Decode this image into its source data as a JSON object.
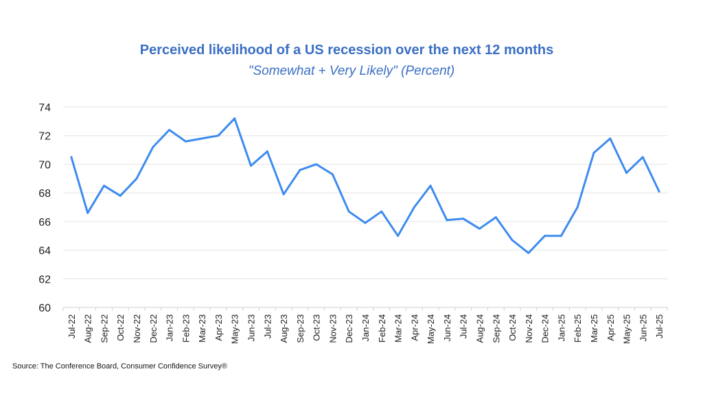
{
  "chart_data": {
    "type": "line",
    "title": "Perceived likelihood of a US recession over the next 12 months",
    "subtitle": "\"Somewhat + Very Likely\" (Percent)",
    "xlabel": "",
    "ylabel": "",
    "ylim": [
      60,
      74
    ],
    "yticks": [
      "60",
      "62",
      "64",
      "66",
      "68",
      "70",
      "72",
      "74"
    ],
    "grid": true,
    "categories": [
      "Jul-22",
      "Aug-22",
      "Sep-22",
      "Oct-22",
      "Nov-22",
      "Dec-22",
      "Jan-23",
      "Feb-23",
      "Mar-23",
      "Apr-23",
      "May-23",
      "Jun-23",
      "Jul-23",
      "Aug-23",
      "Sep-23",
      "Oct-23",
      "Nov-23",
      "Dec-23",
      "Jan-24",
      "Feb-24",
      "Mar-24",
      "Apr-24",
      "May-24",
      "Jun-24",
      "Jul-24",
      "Aug-24",
      "Sep-24",
      "Oct-24",
      "Nov-24",
      "Dec-24",
      "Jan-25",
      "Feb-25",
      "Mar-25",
      "Apr-25",
      "May-25",
      "Jun-25",
      "Jul-25"
    ],
    "series": [
      {
        "values": [
          70.5,
          66.6,
          68.5,
          67.8,
          69.0,
          71.2,
          72.4,
          71.6,
          71.8,
          72.0,
          73.2,
          69.9,
          70.9,
          67.9,
          69.6,
          70.0,
          69.3,
          66.7,
          65.9,
          66.7,
          65.0,
          67.0,
          68.5,
          66.1,
          66.2,
          65.5,
          66.3,
          64.7,
          63.8,
          65.0,
          65.0,
          67.0,
          70.8,
          71.8,
          69.4,
          70.5,
          68.1
        ]
      }
    ],
    "line_color": "#3d8bf0"
  },
  "source": "Source: The Conference Board, Consumer Confidence Survey®"
}
